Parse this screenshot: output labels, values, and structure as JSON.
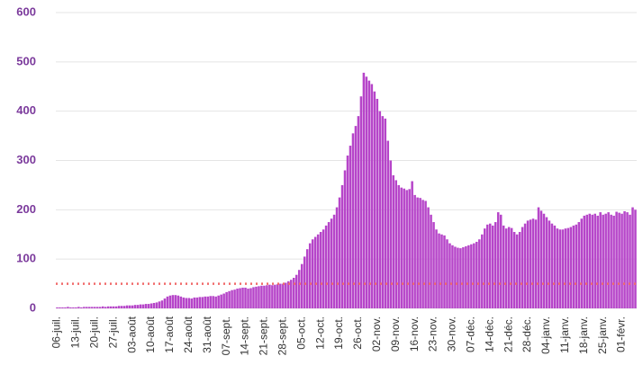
{
  "chart_data": {
    "type": "bar",
    "color": "#b645c9",
    "tick_color": "#7b3a9c",
    "ylim": [
      0,
      600
    ],
    "yticks": [
      0,
      100,
      200,
      300,
      400,
      500,
      600
    ],
    "grid": true,
    "hline": {
      "value": 50,
      "color": "#f06a6a"
    },
    "categories": [
      "06-juil.",
      null,
      null,
      null,
      null,
      null,
      null,
      "13-juil.",
      null,
      null,
      null,
      null,
      null,
      null,
      "20-juil.",
      null,
      null,
      null,
      null,
      null,
      null,
      "27-juil.",
      null,
      null,
      null,
      null,
      null,
      null,
      "03-août",
      null,
      null,
      null,
      null,
      null,
      null,
      "10-août",
      null,
      null,
      null,
      null,
      null,
      null,
      "17-août",
      null,
      null,
      null,
      null,
      null,
      null,
      "24-août",
      null,
      null,
      null,
      null,
      null,
      null,
      "31-août",
      null,
      null,
      null,
      null,
      null,
      null,
      "07-sept.",
      null,
      null,
      null,
      null,
      null,
      null,
      "14-sept.",
      null,
      null,
      null,
      null,
      null,
      null,
      "21-sept.",
      null,
      null,
      null,
      null,
      null,
      null,
      "28-sept.",
      null,
      null,
      null,
      null,
      null,
      null,
      "05-oct.",
      null,
      null,
      null,
      null,
      null,
      null,
      "12-oct.",
      null,
      null,
      null,
      null,
      null,
      null,
      "19-oct.",
      null,
      null,
      null,
      null,
      null,
      null,
      "26-oct.",
      null,
      null,
      null,
      null,
      null,
      null,
      "02-nov.",
      null,
      null,
      null,
      null,
      null,
      null,
      "09-nov.",
      null,
      null,
      null,
      null,
      null,
      null,
      "16-nov.",
      null,
      null,
      null,
      null,
      null,
      null,
      "23-nov.",
      null,
      null,
      null,
      null,
      null,
      null,
      "30-nov.",
      null,
      null,
      null,
      null,
      null,
      null,
      "07-déc.",
      null,
      null,
      null,
      null,
      null,
      null,
      "14-déc.",
      null,
      null,
      null,
      null,
      null,
      null,
      "21-déc.",
      null,
      null,
      null,
      null,
      null,
      null,
      "28-déc.",
      null,
      null,
      null,
      null,
      null,
      null,
      "04-janv.",
      null,
      null,
      null,
      null,
      null,
      null,
      "11-janv.",
      null,
      null,
      null,
      null,
      null,
      null,
      "18-janv.",
      null,
      null,
      null,
      null,
      null,
      null,
      "25-janv.",
      null,
      null,
      null,
      null,
      null,
      null,
      "01-févr.",
      null,
      null,
      null,
      null,
      null
    ],
    "values": [
      2,
      2,
      2,
      2,
      3,
      2,
      2,
      2,
      3,
      2,
      3,
      3,
      3,
      3,
      3,
      3,
      3,
      4,
      3,
      4,
      4,
      4,
      4,
      5,
      5,
      5,
      6,
      6,
      6,
      7,
      7,
      8,
      8,
      9,
      9,
      10,
      11,
      12,
      14,
      16,
      20,
      24,
      26,
      27,
      27,
      26,
      24,
      22,
      21,
      21,
      20,
      22,
      22,
      23,
      23,
      24,
      24,
      25,
      25,
      24,
      26,
      28,
      30,
      33,
      35,
      37,
      38,
      40,
      41,
      42,
      42,
      40,
      41,
      43,
      44,
      45,
      46,
      46,
      47,
      48,
      47,
      48,
      49,
      50,
      50,
      52,
      55,
      58,
      62,
      68,
      78,
      90,
      105,
      120,
      132,
      140,
      145,
      150,
      155,
      160,
      168,
      175,
      182,
      190,
      205,
      225,
      250,
      280,
      310,
      330,
      355,
      370,
      390,
      430,
      478,
      470,
      462,
      455,
      440,
      425,
      400,
      390,
      385,
      340,
      300,
      270,
      260,
      250,
      245,
      243,
      240,
      242,
      258,
      230,
      225,
      224,
      220,
      218,
      205,
      190,
      175,
      160,
      152,
      150,
      148,
      140,
      132,
      128,
      125,
      123,
      122,
      124,
      126,
      128,
      130,
      132,
      135,
      140,
      150,
      162,
      170,
      172,
      168,
      175,
      195,
      190,
      168,
      162,
      165,
      163,
      155,
      150,
      155,
      165,
      172,
      178,
      180,
      182,
      180,
      205,
      198,
      192,
      185,
      178,
      172,
      168,
      162,
      160,
      160,
      162,
      163,
      165,
      168,
      170,
      175,
      182,
      188,
      190,
      192,
      190,
      192,
      188,
      195,
      190,
      192,
      195,
      190,
      188,
      196,
      194,
      192,
      197,
      195,
      190,
      205,
      200
    ]
  }
}
